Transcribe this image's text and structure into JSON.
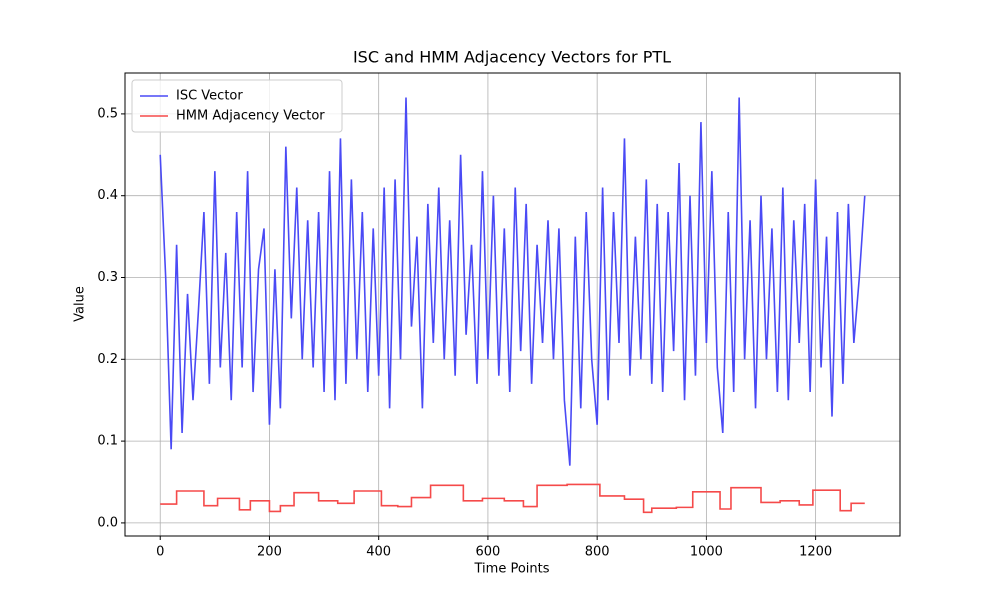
{
  "chart_data": {
    "type": "line",
    "title": "ISC and HMM Adjacency Vectors for PTL",
    "x_label": "Time Points",
    "y_label": "Value",
    "xlim": [
      -64.5,
      1354.5
    ],
    "ylim": [
      -0.016,
      0.55
    ],
    "xticks": [
      0,
      200,
      400,
      600,
      800,
      1000,
      1200
    ],
    "yticks": [
      {
        "value": 0,
        "label": "0.0"
      },
      0.1,
      0.2,
      0.3,
      0.4,
      0.5
    ],
    "grid": true,
    "legend": "upper left",
    "series": [
      {
        "name": "ISC Vector",
        "color": "#4a4af5",
        "drawstyle": "default",
        "x": [
          0,
          10,
          20,
          30,
          40,
          50,
          60,
          70,
          80,
          90,
          100,
          110,
          120,
          130,
          140,
          150,
          160,
          170,
          180,
          190,
          200,
          210,
          220,
          230,
          240,
          250,
          260,
          270,
          280,
          290,
          300,
          310,
          320,
          330,
          340,
          350,
          360,
          370,
          380,
          390,
          400,
          410,
          420,
          430,
          440,
          450,
          460,
          470,
          480,
          490,
          500,
          510,
          520,
          530,
          540,
          550,
          560,
          570,
          580,
          590,
          600,
          610,
          620,
          630,
          640,
          650,
          660,
          670,
          680,
          690,
          700,
          710,
          720,
          730,
          740,
          750,
          760,
          770,
          780,
          790,
          800,
          810,
          820,
          830,
          840,
          850,
          860,
          870,
          880,
          890,
          900,
          910,
          920,
          930,
          940,
          950,
          960,
          970,
          980,
          990,
          1000,
          1010,
          1020,
          1030,
          1040,
          1050,
          1060,
          1070,
          1080,
          1090,
          1100,
          1110,
          1120,
          1130,
          1140,
          1150,
          1160,
          1170,
          1180,
          1190,
          1200,
          1210,
          1220,
          1230,
          1240,
          1250,
          1260,
          1270,
          1280,
          1290
        ],
        "values": [
          0.45,
          0.3,
          0.09,
          0.34,
          0.11,
          0.28,
          0.15,
          0.26,
          0.38,
          0.17,
          0.43,
          0.19,
          0.33,
          0.15,
          0.38,
          0.19,
          0.43,
          0.16,
          0.31,
          0.36,
          0.12,
          0.31,
          0.14,
          0.46,
          0.25,
          0.41,
          0.2,
          0.37,
          0.19,
          0.38,
          0.16,
          0.43,
          0.15,
          0.47,
          0.17,
          0.42,
          0.2,
          0.38,
          0.16,
          0.36,
          0.18,
          0.41,
          0.14,
          0.42,
          0.2,
          0.52,
          0.24,
          0.35,
          0.14,
          0.39,
          0.22,
          0.41,
          0.2,
          0.37,
          0.18,
          0.45,
          0.23,
          0.34,
          0.17,
          0.43,
          0.2,
          0.4,
          0.18,
          0.36,
          0.16,
          0.41,
          0.21,
          0.39,
          0.17,
          0.34,
          0.22,
          0.37,
          0.2,
          0.36,
          0.15,
          0.07,
          0.35,
          0.14,
          0.38,
          0.2,
          0.12,
          0.41,
          0.15,
          0.38,
          0.22,
          0.47,
          0.18,
          0.35,
          0.2,
          0.42,
          0.17,
          0.39,
          0.16,
          0.38,
          0.21,
          0.44,
          0.15,
          0.4,
          0.18,
          0.49,
          0.22,
          0.43,
          0.19,
          0.11,
          0.38,
          0.16,
          0.52,
          0.2,
          0.37,
          0.14,
          0.4,
          0.2,
          0.36,
          0.16,
          0.41,
          0.15,
          0.37,
          0.22,
          0.39,
          0.16,
          0.42,
          0.19,
          0.35,
          0.13,
          0.38,
          0.17,
          0.39,
          0.22,
          0.3,
          0.4
        ]
      },
      {
        "name": "HMM Adjacency Vector",
        "color": "#f54a4a",
        "drawstyle": "steps-post",
        "x": [
          0,
          30,
          80,
          105,
          145,
          165,
          200,
          220,
          245,
          290,
          325,
          355,
          405,
          435,
          460,
          495,
          555,
          590,
          630,
          665,
          690,
          745,
          805,
          850,
          885,
          900,
          945,
          975,
          1025,
          1045,
          1100,
          1135,
          1170,
          1195,
          1245,
          1265,
          1290
        ],
        "values": [
          0.023,
          0.039,
          0.021,
          0.03,
          0.016,
          0.027,
          0.014,
          0.021,
          0.037,
          0.027,
          0.024,
          0.039,
          0.021,
          0.02,
          0.031,
          0.046,
          0.027,
          0.03,
          0.027,
          0.02,
          0.046,
          0.047,
          0.033,
          0.029,
          0.013,
          0.018,
          0.019,
          0.038,
          0.017,
          0.043,
          0.025,
          0.027,
          0.022,
          0.04,
          0.015,
          0.024,
          0.024
        ]
      }
    ]
  }
}
